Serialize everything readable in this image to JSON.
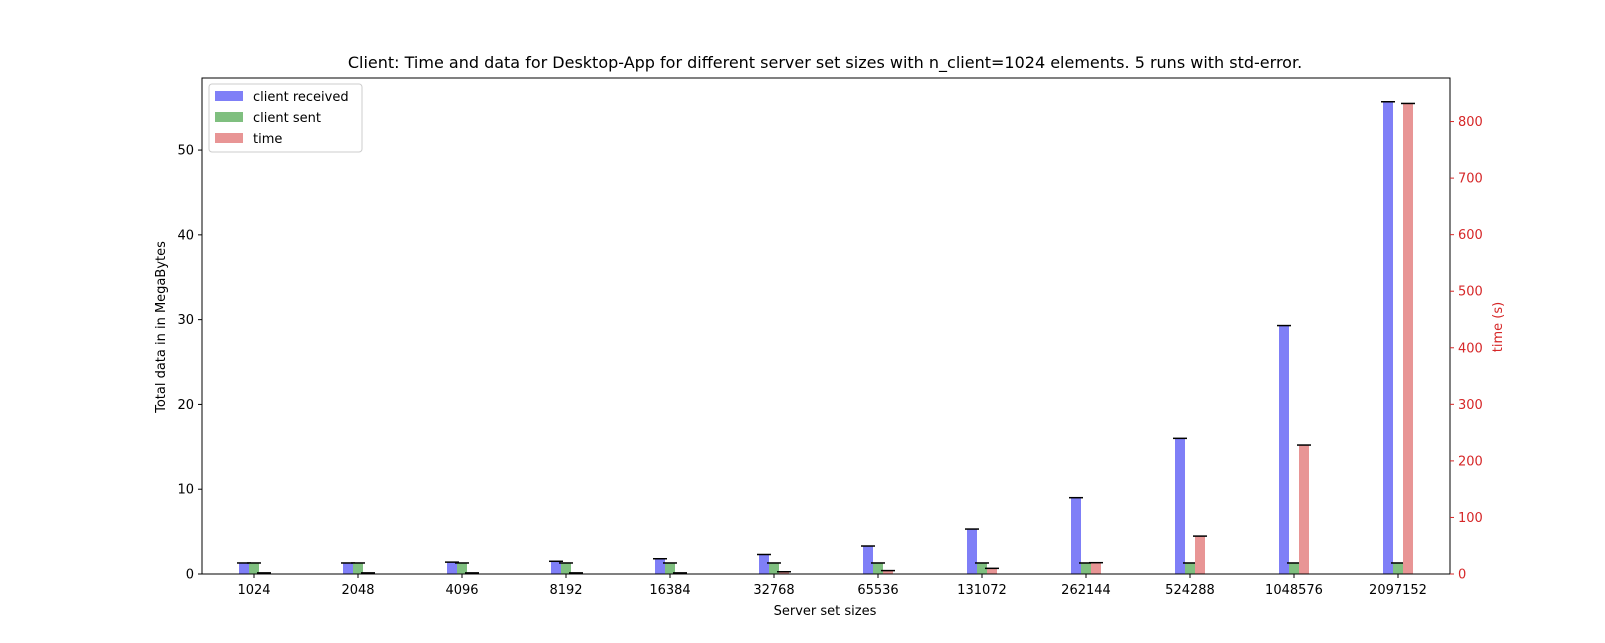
{
  "chart_data": {
    "type": "bar",
    "title": "Client: Time and data for Desktop-App for different server set sizes with n_client=1024 elements. 5 runs with std-error.",
    "xlabel": "Server set sizes",
    "ylabel": "Total data in in MegaBytes",
    "ylabel_right": "time (s)",
    "categories": [
      "1024",
      "2048",
      "4096",
      "8192",
      "16384",
      "32768",
      "65536",
      "131072",
      "262144",
      "524288",
      "1048576",
      "2097152"
    ],
    "ylim": [
      0,
      58.5
    ],
    "ylim_right": [
      0,
      877
    ],
    "yticks": [
      0,
      10,
      20,
      30,
      40,
      50
    ],
    "yticks_right": [
      0,
      100,
      200,
      300,
      400,
      500,
      600,
      700,
      800
    ],
    "legend_position": "upper-left",
    "series": [
      {
        "name": "client received",
        "axis": "left",
        "color": "#7f7ff7",
        "values": [
          1.3,
          1.3,
          1.4,
          1.5,
          1.8,
          2.3,
          3.3,
          5.3,
          9.0,
          16.0,
          29.3,
          55.7
        ]
      },
      {
        "name": "client sent",
        "axis": "left",
        "color": "#7fbf7f",
        "values": [
          1.3,
          1.3,
          1.3,
          1.3,
          1.3,
          1.3,
          1.3,
          1.3,
          1.3,
          1.3,
          1.3,
          1.3
        ]
      },
      {
        "name": "time",
        "axis": "right",
        "color": "#e89595",
        "values": [
          2,
          2,
          2,
          2,
          2,
          4,
          6,
          10,
          20,
          67,
          228,
          832
        ]
      }
    ]
  }
}
